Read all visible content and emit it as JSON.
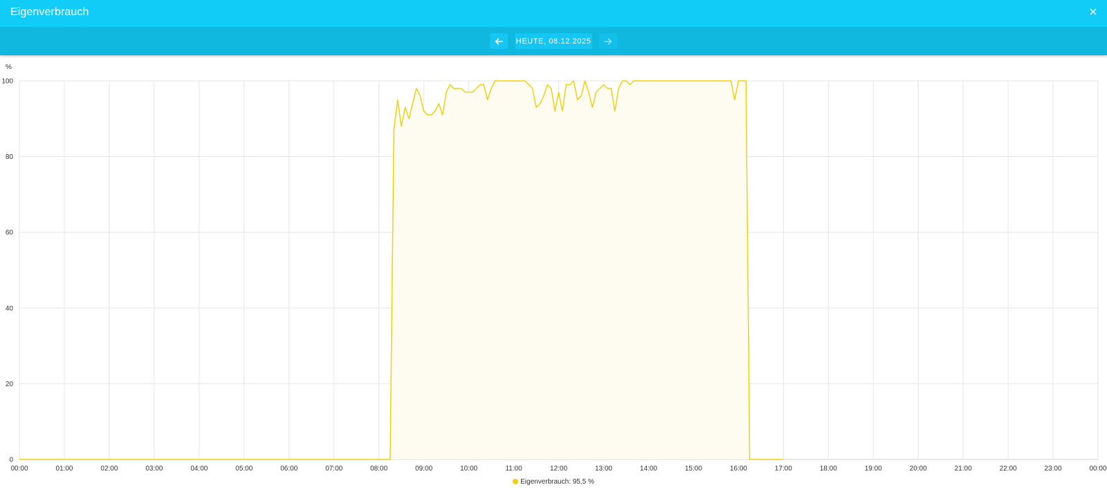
{
  "window": {
    "title": "Eigenverbrauch"
  },
  "nav": {
    "date_label": "HEUTE, 08.12.2025"
  },
  "icons": {
    "close": "close-icon",
    "prev": "arrow-left-icon",
    "next": "arrow-right-icon"
  },
  "colors": {
    "titlebar": "#12ccf8",
    "navbar": "#10b8e0",
    "series": "#f2cf10",
    "fill": "#fefcf0",
    "grid": "#e6e6e6"
  },
  "legend": {
    "text": "Eigenverbrauch: 95,5 %"
  },
  "chart_data": {
    "type": "area",
    "title": "",
    "xlabel": "",
    "ylabel": "%",
    "ylim": [
      0,
      100
    ],
    "yticks": [
      "0",
      "20",
      "40",
      "60",
      "80",
      "100"
    ],
    "xticks": [
      "00:00",
      "01:00",
      "02:00",
      "03:00",
      "04:00",
      "05:00",
      "06:00",
      "07:00",
      "08:00",
      "09:00",
      "10:00",
      "11:00",
      "12:00",
      "13:00",
      "14:00",
      "15:00",
      "16:00",
      "17:00",
      "18:00",
      "19:00",
      "20:00",
      "21:00",
      "22:00",
      "23:00",
      "00:00"
    ],
    "grid": true,
    "legend_position": "bottom",
    "series": [
      {
        "name": "Eigenverbrauch",
        "points": [
          [
            "00:00",
            0
          ],
          [
            "08:15",
            0
          ],
          [
            "08:20",
            87
          ],
          [
            "08:25",
            95
          ],
          [
            "08:30",
            88
          ],
          [
            "08:35",
            93
          ],
          [
            "08:40",
            90
          ],
          [
            "08:45",
            94
          ],
          [
            "08:50",
            98
          ],
          [
            "08:55",
            96
          ],
          [
            "09:00",
            92
          ],
          [
            "09:05",
            91
          ],
          [
            "09:10",
            91
          ],
          [
            "09:15",
            92
          ],
          [
            "09:20",
            94
          ],
          [
            "09:25",
            91
          ],
          [
            "09:30",
            97
          ],
          [
            "09:35",
            99
          ],
          [
            "09:40",
            98
          ],
          [
            "09:45",
            98
          ],
          [
            "09:50",
            98
          ],
          [
            "09:55",
            97
          ],
          [
            "10:00",
            97
          ],
          [
            "10:05",
            97
          ],
          [
            "10:10",
            98
          ],
          [
            "10:15",
            99
          ],
          [
            "10:20",
            99
          ],
          [
            "10:25",
            95
          ],
          [
            "10:30",
            98
          ],
          [
            "10:35",
            100
          ],
          [
            "11:00",
            100
          ],
          [
            "11:15",
            100
          ],
          [
            "11:20",
            99
          ],
          [
            "11:25",
            98
          ],
          [
            "11:30",
            93
          ],
          [
            "11:35",
            94
          ],
          [
            "11:40",
            96
          ],
          [
            "11:45",
            99
          ],
          [
            "11:50",
            98
          ],
          [
            "11:55",
            92
          ],
          [
            "12:00",
            97
          ],
          [
            "12:05",
            92
          ],
          [
            "12:10",
            99
          ],
          [
            "12:15",
            99
          ],
          [
            "12:20",
            100
          ],
          [
            "12:25",
            95
          ],
          [
            "12:30",
            96
          ],
          [
            "12:35",
            100
          ],
          [
            "12:40",
            97
          ],
          [
            "12:45",
            93
          ],
          [
            "12:50",
            97
          ],
          [
            "12:55",
            98
          ],
          [
            "13:00",
            99
          ],
          [
            "13:05",
            98
          ],
          [
            "13:10",
            98
          ],
          [
            "13:15",
            92
          ],
          [
            "13:20",
            98
          ],
          [
            "13:25",
            100
          ],
          [
            "13:30",
            100
          ],
          [
            "13:35",
            99
          ],
          [
            "13:40",
            100
          ],
          [
            "14:00",
            100
          ],
          [
            "15:00",
            100
          ],
          [
            "15:50",
            100
          ],
          [
            "15:55",
            95
          ],
          [
            "16:00",
            100
          ],
          [
            "16:10",
            100
          ],
          [
            "16:15",
            0
          ],
          [
            "17:00",
            0
          ]
        ]
      }
    ]
  }
}
